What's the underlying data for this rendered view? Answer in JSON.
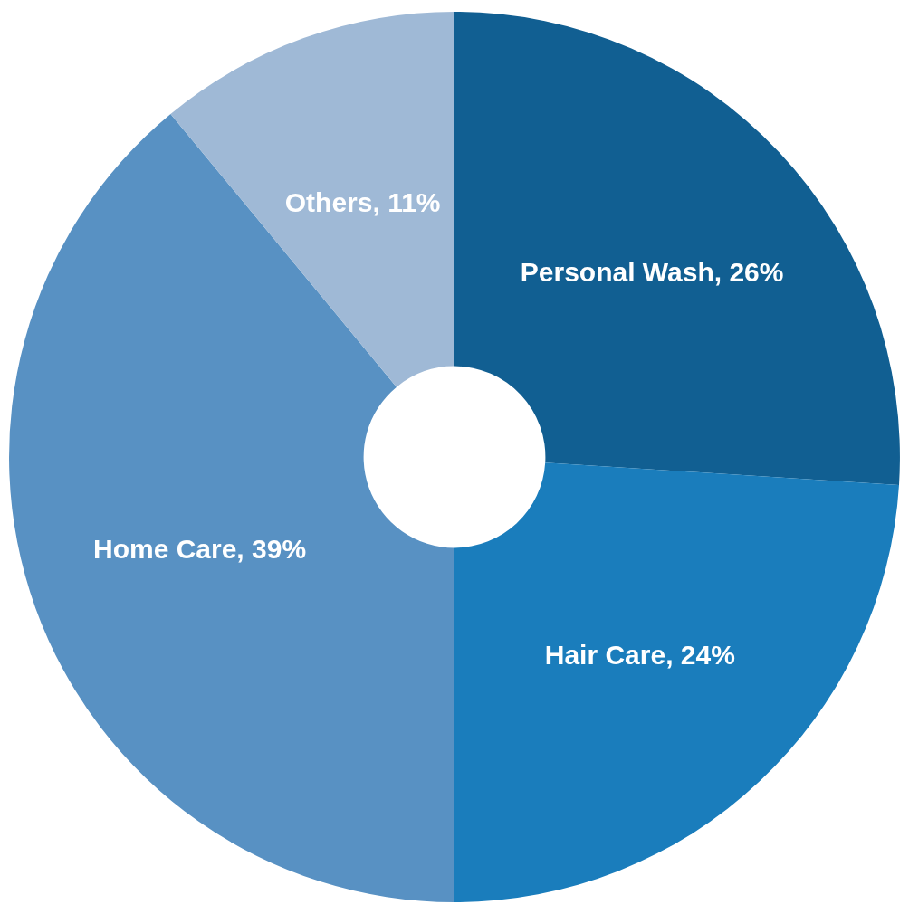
{
  "chart_data": {
    "type": "donut",
    "categories": [
      "Personal Wash",
      "Hair Care",
      "Home Care",
      "Others"
    ],
    "values": [
      26,
      24,
      39,
      11
    ],
    "value_labels": [
      "26%",
      "24%",
      "39%",
      "11%"
    ],
    "colors": [
      "#115f92",
      "#1a7dbc",
      "#5891c3",
      "#9fb9d6"
    ],
    "legend": false
  }
}
